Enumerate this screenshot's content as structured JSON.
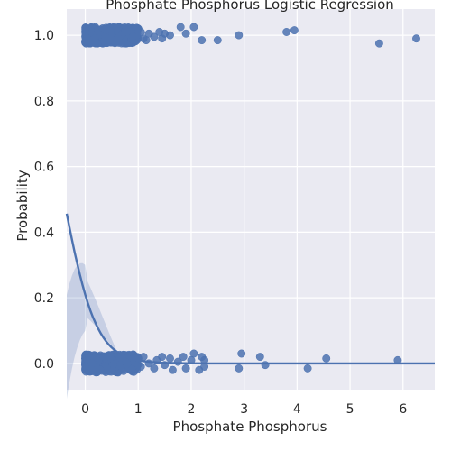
{
  "chart_data": {
    "type": "scatter",
    "title": "Phosphate Phosphorus Logistic Regression",
    "xlabel": "Phosphate Phosphorus",
    "ylabel": "Probability",
    "xlim": [
      -0.35,
      6.6
    ],
    "ylim": [
      -0.08,
      1.08
    ],
    "xticks": [
      0,
      1,
      2,
      3,
      4,
      5,
      6
    ],
    "yticks": [
      0.0,
      0.2,
      0.4,
      0.6,
      0.8,
      1.0
    ],
    "xtick_labels": [
      "0",
      "1",
      "2",
      "3",
      "4",
      "5",
      "6"
    ],
    "ytick_labels": [
      "0.0",
      "0.2",
      "0.4",
      "0.6",
      "0.8",
      "1.0"
    ],
    "grid": true,
    "background": "#eaeaf2",
    "point_color": "#4c72b0",
    "line_color": "#4c72b0",
    "ci_color": "#4c72b0",
    "points_y1": [
      [
        1.0,
        1.02
      ],
      [
        1.05,
        1.01
      ],
      [
        1.1,
        0.99
      ],
      [
        1.15,
        0.985
      ],
      [
        1.2,
        1.005
      ],
      [
        1.3,
        0.995
      ],
      [
        1.4,
        1.01
      ],
      [
        1.45,
        0.99
      ],
      [
        1.5,
        1.005
      ],
      [
        1.6,
        1.0
      ],
      [
        1.8,
        1.025
      ],
      [
        1.9,
        1.005
      ],
      [
        2.05,
        1.025
      ],
      [
        2.2,
        0.985
      ],
      [
        2.5,
        0.985
      ],
      [
        2.9,
        1.0
      ],
      [
        3.8,
        1.01
      ],
      [
        3.95,
        1.015
      ],
      [
        5.55,
        0.975
      ],
      [
        6.25,
        0.99
      ]
    ],
    "points_y0": [
      [
        1.0,
        0.015
      ],
      [
        1.05,
        -0.01
      ],
      [
        1.1,
        0.02
      ],
      [
        1.2,
        0.0
      ],
      [
        1.3,
        -0.015
      ],
      [
        1.35,
        0.01
      ],
      [
        1.45,
        0.02
      ],
      [
        1.5,
        -0.005
      ],
      [
        1.6,
        0.015
      ],
      [
        1.65,
        -0.02
      ],
      [
        1.75,
        0.005
      ],
      [
        1.85,
        0.02
      ],
      [
        1.9,
        -0.015
      ],
      [
        2.0,
        0.01
      ],
      [
        2.05,
        0.03
      ],
      [
        2.15,
        -0.02
      ],
      [
        2.2,
        0.02
      ],
      [
        2.25,
        -0.01
      ],
      [
        2.25,
        0.01
      ],
      [
        2.9,
        -0.015
      ],
      [
        2.95,
        0.03
      ],
      [
        3.3,
        0.02
      ],
      [
        3.4,
        -0.005
      ],
      [
        4.2,
        -0.015
      ],
      [
        4.55,
        0.015
      ],
      [
        5.9,
        0.01
      ]
    ],
    "dense_cluster": {
      "x_range": [
        0.0,
        1.0
      ],
      "count_per_class": 400
    },
    "regression_curve": {
      "intercept": -1.33,
      "slope": -3.3
    },
    "confidence_band_near_zero": [
      0.1,
      0.3
    ]
  }
}
